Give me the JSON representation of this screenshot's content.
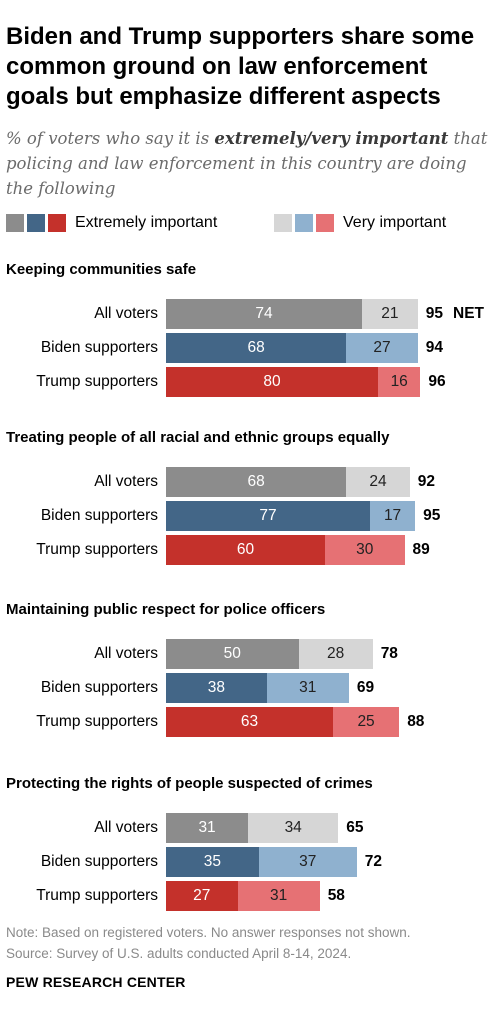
{
  "header": {
    "title": "Biden and Trump supporters share some common ground on law enforcement goals but emphasize different aspects",
    "subtitle_before": "% of voters who say it is ",
    "subtitle_emphasis": "extremely/very important",
    "subtitle_after": " that policing and law enforcement in this country are doing the following"
  },
  "legend": {
    "extremely_label": "Extremely important",
    "very_label": "Very important"
  },
  "colors": {
    "all_extremely": "#8c8c8c",
    "all_very": "#d6d6d6",
    "biden_extremely": "#436687",
    "biden_very": "#8fb1cf",
    "trump_extremely": "#c4312b",
    "trump_very": "#e67174"
  },
  "net_suffix": "NET",
  "chart_data": {
    "type": "bar",
    "stacked": true,
    "orientation": "horizontal",
    "series_names": [
      "Extremely important",
      "Very important"
    ],
    "groups": [
      {
        "title": "Keeping communities safe",
        "rows": [
          {
            "label": "All voters",
            "key": "all",
            "extremely": 74,
            "very": 21,
            "net": 95
          },
          {
            "label": "Biden supporters",
            "key": "biden",
            "extremely": 68,
            "very": 27,
            "net": 94
          },
          {
            "label": "Trump supporters",
            "key": "trump",
            "extremely": 80,
            "very": 16,
            "net": 96
          }
        ]
      },
      {
        "title": "Treating people of all racial and ethnic groups equally",
        "rows": [
          {
            "label": "All voters",
            "key": "all",
            "extremely": 68,
            "very": 24,
            "net": 92
          },
          {
            "label": "Biden supporters",
            "key": "biden",
            "extremely": 77,
            "very": 17,
            "net": 95
          },
          {
            "label": "Trump supporters",
            "key": "trump",
            "extremely": 60,
            "very": 30,
            "net": 89
          }
        ]
      },
      {
        "title": "Maintaining public respect for police officers",
        "rows": [
          {
            "label": "All voters",
            "key": "all",
            "extremely": 50,
            "very": 28,
            "net": 78
          },
          {
            "label": "Biden supporters",
            "key": "biden",
            "extremely": 38,
            "very": 31,
            "net": 69
          },
          {
            "label": "Trump supporters",
            "key": "trump",
            "extremely": 63,
            "very": 25,
            "net": 88
          }
        ]
      },
      {
        "title": "Protecting the rights of people suspected of crimes",
        "rows": [
          {
            "label": "All voters",
            "key": "all",
            "extremely": 31,
            "very": 34,
            "net": 65
          },
          {
            "label": "Biden supporters",
            "key": "biden",
            "extremely": 35,
            "very": 37,
            "net": 72
          },
          {
            "label": "Trump supporters",
            "key": "trump",
            "extremely": 27,
            "very": 31,
            "net": 58
          }
        ]
      }
    ]
  },
  "footer": {
    "note": "Note: Based on registered voters. No answer responses not shown.",
    "source": "Source: Survey of U.S. adults conducted April 8-14, 2024.",
    "brand": "PEW RESEARCH CENTER"
  }
}
